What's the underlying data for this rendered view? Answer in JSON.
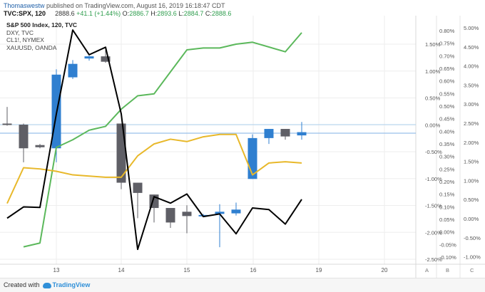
{
  "header": {
    "author": "Thomaswestw",
    "published_text": " published on TradingView.com, August 16, 2019 16:18:47 CDT",
    "symbol_line": "TVC:SPX, 120",
    "change": "+41.1 (+1.44%)",
    "o_label": "O:",
    "o_val": "2886.7",
    "h_label": "H:",
    "h_val": "2893.6",
    "l_label": "L:",
    "l_val": "2884.7",
    "c_label": "C:",
    "c_val": "2888.6"
  },
  "legend": {
    "main": "S&P 500 Index, 120, TVC",
    "items": [
      "DXY, TVC",
      "CL1!, NYMEX",
      "XAUUSD, OANDA"
    ]
  },
  "footer": {
    "prefix": "Created with",
    "brand": "TradingView"
  },
  "colors": {
    "up": "#2f7fd0",
    "down": "#5f5f66",
    "line_a": "#000000",
    "line_b": "#e8b82a",
    "line_c": "#5bb85b",
    "hline": "#aed0ee",
    "grid": "#eeeeee"
  },
  "chart_data": {
    "type": "candlestick",
    "x_ticks": [
      "13",
      "14",
      "15",
      "16",
      "19",
      "20"
    ],
    "axis_a": {
      "label": "A",
      "ticks": [
        "1.50%",
        "1.00%",
        "0.50%",
        "0.00%",
        "-0.50%",
        "-1.00%",
        "-1.50%",
        "-2.00%",
        "-2.50%"
      ]
    },
    "axis_b": {
      "label": "B",
      "ticks": [
        "0.80%",
        "0.75%",
        "0.70%",
        "0.65%",
        "0.60%",
        "0.55%",
        "0.50%",
        "0.45%",
        "0.40%",
        "0.35%",
        "0.30%",
        "0.25%",
        "0.20%",
        "0.15%",
        "0.10%",
        "0.05%",
        "0.00%",
        "-0.05%",
        "-0.10%"
      ]
    },
    "axis_c": {
      "label": "C",
      "ticks": [
        "5.00%",
        "4.50%",
        "4.00%",
        "3.50%",
        "3.00%",
        "2.50%",
        "2.00%",
        "1.50%",
        "1.00%",
        "0.50%",
        "0.00%",
        "-0.50%",
        "-1.00%"
      ]
    },
    "candles_pct": [
      {
        "o": 0.02,
        "h": 0.33,
        "l": -0.02,
        "c": 0.0
      },
      {
        "o": 0.0,
        "h": 0.02,
        "l": -0.7,
        "c": -0.44
      },
      {
        "o": -0.38,
        "h": -0.36,
        "l": -0.44,
        "c": -0.42
      },
      {
        "o": -0.44,
        "h": 1.03,
        "l": -0.7,
        "c": 0.93
      },
      {
        "o": 0.88,
        "h": 1.2,
        "l": 0.85,
        "c": 1.13
      },
      {
        "o": 1.23,
        "h": 1.28,
        "l": 1.19,
        "c": 1.27
      },
      {
        "o": 1.27,
        "h": 1.4,
        "l": 1.15,
        "c": 1.17
      },
      {
        "o": 0.02,
        "h": 0.02,
        "l": -1.2,
        "c": -1.08
      },
      {
        "o": -1.08,
        "h": -1.1,
        "l": -1.74,
        "c": -1.27
      },
      {
        "o": -1.3,
        "h": -1.42,
        "l": -1.82,
        "c": -1.55
      },
      {
        "o": -1.55,
        "h": -1.92,
        "l": -1.92,
        "c": -1.82
      },
      {
        "o": -1.62,
        "h": -1.5,
        "l": -2.02,
        "c": -1.7
      },
      {
        "o": -1.68,
        "h": -1.66,
        "l": -1.72,
        "c": -1.68
      },
      {
        "o": -1.66,
        "h": -1.48,
        "l": -2.28,
        "c": -1.62
      },
      {
        "o": -1.65,
        "h": -1.45,
        "l": -1.69,
        "c": -1.58
      },
      {
        "o": -1.01,
        "h": -0.18,
        "l": -1.01,
        "c": -0.25
      },
      {
        "o": -0.25,
        "h": -0.12,
        "l": -0.36,
        "c": -0.08
      },
      {
        "o": -0.08,
        "h": -0.08,
        "l": -0.28,
        "c": -0.22
      },
      {
        "o": -0.2,
        "h": 0.05,
        "l": -0.28,
        "c": -0.14
      }
    ],
    "series": [
      {
        "name": "DXY, TVC",
        "axis": "A",
        "values": [
          -1.74,
          -1.53,
          -1.54,
          0.2,
          1.76,
          1.3,
          1.44,
          0.2,
          -2.32,
          -1.34,
          -1.46,
          -1.29,
          -1.71,
          -1.66,
          -2.03,
          -1.55,
          -1.58,
          -1.85,
          -1.39,
          -1.6,
          -1.44
        ]
      },
      {
        "name": "CL1!, NYMEX",
        "axis": "B",
        "values": [
          0.14,
          0.44,
          0.43,
          0.41,
          0.38,
          0.37,
          0.36,
          0.36,
          0.54,
          0.64,
          0.68,
          0.66,
          0.7,
          0.72,
          0.72,
          0.38,
          0.48,
          0.49,
          0.48
        ]
      },
      {
        "name": "XAUUSD, OANDA",
        "axis": "C",
        "values": [
          -0.7,
          -0.6,
          1.9,
          2.1,
          2.35,
          2.45,
          2.9,
          3.25,
          3.3,
          4.45,
          4.5,
          4.5,
          4.6,
          4.65,
          4.4,
          4.9
        ]
      }
    ]
  }
}
